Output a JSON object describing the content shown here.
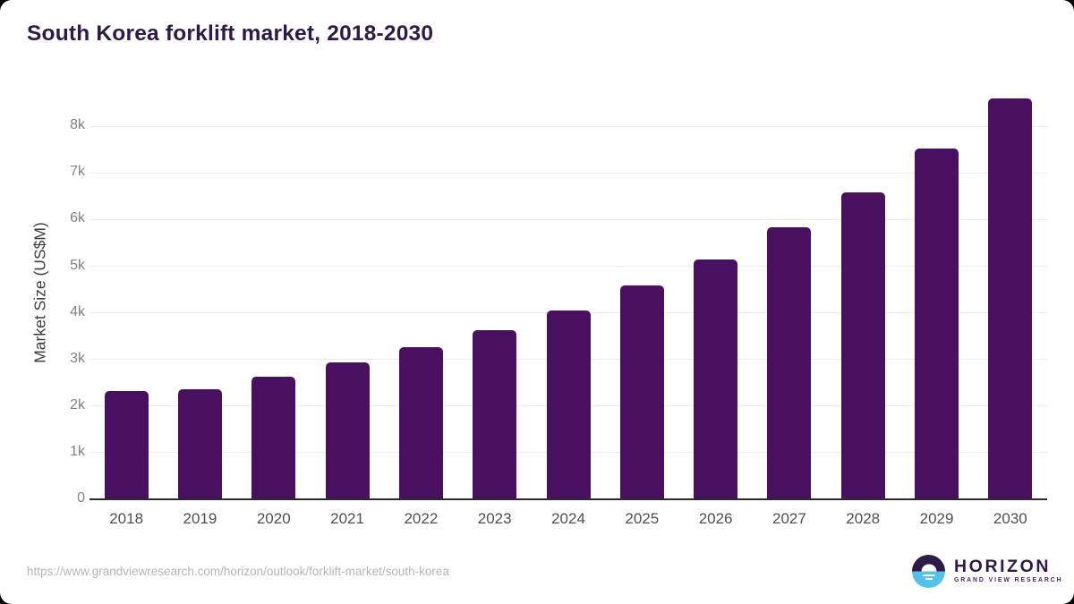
{
  "title": "South Korea forklift market, 2018-2030",
  "chart_data": {
    "type": "bar",
    "title": "South Korea forklift market, 2018-2030",
    "xlabel": "",
    "ylabel": "Market Size (US$M)",
    "categories": [
      "2018",
      "2019",
      "2020",
      "2021",
      "2022",
      "2023",
      "2024",
      "2025",
      "2026",
      "2027",
      "2028",
      "2029",
      "2030"
    ],
    "values": [
      2320,
      2360,
      2630,
      2940,
      3260,
      3630,
      4050,
      4580,
      5140,
      5840,
      6590,
      7520,
      8600
    ],
    "unit": "US$M",
    "ylim": [
      0,
      8800
    ],
    "yticks": [
      0,
      1000,
      2000,
      3000,
      4000,
      5000,
      6000,
      7000,
      8000
    ],
    "ytick_labels": [
      "0",
      "1k",
      "2k",
      "3k",
      "4k",
      "5k",
      "6k",
      "7k",
      "8k"
    ],
    "grid": true,
    "legend": false
  },
  "footer": {
    "source_url": "https://www.grandviewresearch.com/horizon/outlook/forklift-market/south-korea",
    "logo_name": "HORIZON",
    "logo_subtitle": "GRAND VIEW RESEARCH"
  },
  "colors": {
    "title": "#2e1a47",
    "bar": "#4a1060",
    "gridline": "#ececec",
    "axis_line": "#2b2b2b",
    "y_tick_label": "#828282",
    "x_tick_label": "#4f4f4f",
    "y_axis_title": "#3d3d3d",
    "source_url": "#b5b5b5",
    "logo_dark_purple": "#2e1a47",
    "logo_light_blue": "#55c0e9",
    "logo_subtitle_purple": "#45276a"
  }
}
